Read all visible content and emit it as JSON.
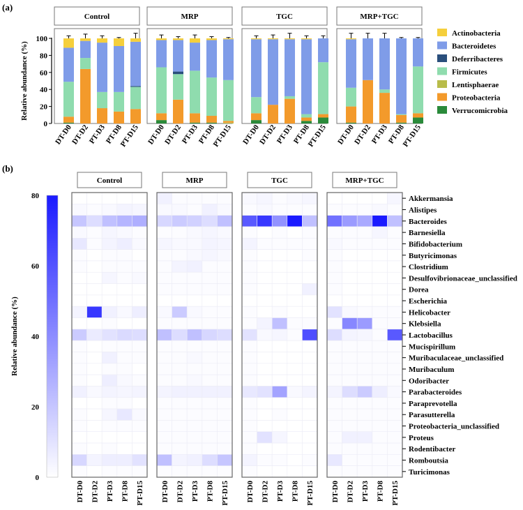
{
  "chart_data": [
    {
      "type": "bar",
      "stacked": true,
      "panel_label": "(a)",
      "ylabel": "Relative abundance (%)",
      "ylim": [
        0,
        100
      ],
      "yticks": [
        "0",
        "20",
        "40",
        "60",
        "80",
        "100"
      ],
      "categories": [
        "DT-D0",
        "DT-D2",
        "PT-D3",
        "PT-D8",
        "PT-D15"
      ],
      "facets": [
        "Control",
        "MRP",
        "TGC",
        "MRP+TGC"
      ],
      "legend": [
        {
          "name": "Actinobacteria",
          "color": "#f5cf3c"
        },
        {
          "name": "Bacteroidetes",
          "color": "#7f9ce8"
        },
        {
          "name": "Deferribacteres",
          "color": "#2a4f7c"
        },
        {
          "name": "Firmicutes",
          "color": "#8fdcae"
        },
        {
          "name": "Lentisphaerae",
          "color": "#b8bc4a"
        },
        {
          "name": "Proteobacteria",
          "color": "#f39a2b"
        },
        {
          "name": "Verrucomicrobia",
          "color": "#2a8a3a"
        }
      ],
      "stack_order": [
        "Verrucomicrobia",
        "Lentisphaerae",
        "Proteobacteria",
        "Firmicutes",
        "Deferribacteres",
        "Bacteroidetes",
        "Actinobacteria"
      ],
      "series_values": {
        "Control": [
          [
            1,
            0,
            7,
            41,
            0,
            40,
            11
          ],
          [
            0,
            0,
            64,
            13,
            0,
            20,
            3
          ],
          [
            0,
            0,
            18,
            19,
            0,
            58,
            5
          ],
          [
            0,
            0,
            14,
            23,
            0,
            54,
            9
          ],
          [
            0,
            0,
            17,
            26,
            1,
            52,
            4
          ]
        ],
        "MRP": [
          [
            4,
            0,
            8,
            54,
            0,
            32,
            2
          ],
          [
            0,
            0,
            28,
            30,
            3,
            37,
            2
          ],
          [
            1,
            0,
            11,
            50,
            0,
            33,
            5
          ],
          [
            1,
            0,
            8,
            45,
            0,
            44,
            2
          ],
          [
            0,
            1,
            2,
            48,
            0,
            48,
            1
          ]
        ],
        "TGC": [
          [
            4,
            0,
            8,
            19,
            0,
            68,
            1
          ],
          [
            0,
            0,
            22,
            0,
            0,
            77,
            1
          ],
          [
            0,
            0,
            29,
            3,
            0,
            67,
            1
          ],
          [
            3,
            0,
            4,
            4,
            0,
            88,
            1
          ],
          [
            7,
            0,
            4,
            61,
            0,
            28,
            0
          ]
        ],
        "MRP+TGC": [
          [
            1,
            0,
            19,
            22,
            0,
            57,
            1
          ],
          [
            0,
            0,
            51,
            0,
            0,
            49,
            0
          ],
          [
            0,
            0,
            36,
            4,
            0,
            60,
            0
          ],
          [
            1,
            0,
            9,
            1,
            0,
            89,
            0
          ],
          [
            7,
            0,
            5,
            55,
            0,
            33,
            0
          ]
        ]
      },
      "error_bars": {
        "Control": [
          3,
          5,
          3,
          1,
          6
        ],
        "MRP": [
          4,
          2,
          4,
          2,
          1
        ],
        "TGC": [
          3,
          4,
          6,
          3,
          3
        ],
        "MRP+TGC": [
          6,
          6,
          6,
          1,
          1
        ]
      }
    },
    {
      "type": "heatmap",
      "panel_label": "(b)",
      "colorbar_label": "Relative abundance (%)",
      "colorbar_range": [
        0,
        80
      ],
      "colorbar_ticks": [
        "0",
        "20",
        "40",
        "60",
        "80"
      ],
      "low_color": "#ffffff",
      "high_color": "#1a1aff",
      "facets": [
        "Control",
        "MRP",
        "TGC",
        "MRP+TGC"
      ],
      "columns": [
        "DT-D0",
        "DT-D2",
        "PT-D3",
        "PT-D8",
        "PT-D15"
      ],
      "rows": [
        "Akkermansia",
        "Alistipes",
        "Bacteroides",
        "Barnesiella",
        "Bifidobacterium",
        "Butyricimonas",
        "Clostridium",
        "Desulfovibrionaceae_unclassified",
        "Dorea",
        "Escherichia",
        "Helicobacter",
        "Klebsiella",
        "Lactobacillus",
        "Mucispirillum",
        "Muribaculaceae_unclassified",
        "Muribaculum",
        "Odoribacter",
        "Parabacteroides",
        "Paraprevotella",
        "Parasutterella",
        "Proteobacteria_unclassified",
        "Proteus",
        "Rodentibacter",
        "Romboutsia",
        "Turicimonas"
      ],
      "values": {
        "Control": [
          [
            0,
            0,
            0,
            0,
            0
          ],
          [
            2,
            1,
            2,
            4,
            3
          ],
          [
            20,
            12,
            22,
            26,
            28
          ],
          [
            2,
            1,
            3,
            2,
            1
          ],
          [
            8,
            1,
            4,
            6,
            2
          ],
          [
            1,
            0,
            1,
            1,
            0
          ],
          [
            1,
            0,
            1,
            1,
            1
          ],
          [
            0,
            0,
            3,
            1,
            2
          ],
          [
            0,
            0,
            0,
            0,
            0
          ],
          [
            0,
            0,
            0,
            0,
            0
          ],
          [
            4,
            70,
            5,
            2,
            6
          ],
          [
            0,
            0,
            1,
            0,
            0
          ],
          [
            18,
            7,
            10,
            13,
            12
          ],
          [
            1,
            0,
            1,
            1,
            1
          ],
          [
            1,
            0,
            5,
            1,
            1
          ],
          [
            1,
            0,
            1,
            1,
            0
          ],
          [
            1,
            0,
            6,
            2,
            1
          ],
          [
            5,
            2,
            4,
            3,
            4
          ],
          [
            0,
            0,
            1,
            1,
            0
          ],
          [
            1,
            0,
            3,
            8,
            2
          ],
          [
            1,
            0,
            1,
            1,
            1
          ],
          [
            0,
            0,
            0,
            0,
            0
          ],
          [
            1,
            0,
            1,
            0,
            0
          ],
          [
            14,
            4,
            6,
            6,
            10
          ],
          [
            1,
            0,
            1,
            1,
            1
          ]
        ],
        "MRP": [
          [
            5,
            1,
            1,
            1,
            1
          ],
          [
            2,
            2,
            1,
            5,
            2
          ],
          [
            14,
            18,
            16,
            12,
            22
          ],
          [
            1,
            1,
            2,
            3,
            2
          ],
          [
            3,
            2,
            2,
            4,
            3
          ],
          [
            1,
            1,
            2,
            3,
            2
          ],
          [
            1,
            4,
            5,
            1,
            1
          ],
          [
            1,
            1,
            1,
            1,
            1
          ],
          [
            1,
            1,
            1,
            1,
            1
          ],
          [
            0,
            0,
            0,
            0,
            0
          ],
          [
            2,
            18,
            2,
            1,
            1
          ],
          [
            1,
            1,
            1,
            1,
            1
          ],
          [
            22,
            12,
            22,
            14,
            12
          ],
          [
            1,
            1,
            1,
            1,
            1
          ],
          [
            1,
            1,
            2,
            1,
            1
          ],
          [
            1,
            1,
            1,
            1,
            1
          ],
          [
            1,
            1,
            2,
            1,
            1
          ],
          [
            4,
            5,
            5,
            5,
            5
          ],
          [
            1,
            1,
            1,
            1,
            1
          ],
          [
            1,
            1,
            1,
            1,
            1
          ],
          [
            1,
            1,
            1,
            1,
            1
          ],
          [
            1,
            1,
            1,
            1,
            1
          ],
          [
            1,
            1,
            1,
            1,
            1
          ],
          [
            22,
            4,
            5,
            12,
            20
          ],
          [
            1,
            1,
            1,
            1,
            1
          ]
        ],
        "TGC": [
          [
            2,
            3,
            1,
            2,
            3
          ],
          [
            1,
            2,
            1,
            1,
            1
          ],
          [
            58,
            70,
            38,
            80,
            22
          ],
          [
            1,
            0,
            1,
            0,
            1
          ],
          [
            4,
            1,
            1,
            1,
            1
          ],
          [
            1,
            0,
            0,
            0,
            1
          ],
          [
            1,
            0,
            0,
            0,
            0
          ],
          [
            1,
            0,
            0,
            0,
            0
          ],
          [
            1,
            0,
            0,
            0,
            5
          ],
          [
            0,
            0,
            0,
            0,
            0
          ],
          [
            1,
            0,
            1,
            0,
            0
          ],
          [
            1,
            4,
            22,
            1,
            1
          ],
          [
            10,
            2,
            3,
            1,
            62
          ],
          [
            1,
            0,
            0,
            0,
            0
          ],
          [
            1,
            0,
            0,
            0,
            0
          ],
          [
            1,
            0,
            0,
            0,
            0
          ],
          [
            1,
            0,
            0,
            0,
            0
          ],
          [
            8,
            10,
            32,
            2,
            4
          ],
          [
            1,
            0,
            0,
            0,
            0
          ],
          [
            1,
            0,
            1,
            0,
            0
          ],
          [
            1,
            0,
            0,
            0,
            0
          ],
          [
            1,
            10,
            3,
            0,
            0
          ],
          [
            1,
            0,
            0,
            0,
            0
          ],
          [
            4,
            1,
            1,
            0,
            1
          ],
          [
            1,
            0,
            0,
            0,
            0
          ]
        ],
        "MRP+TGC": [
          [
            0,
            0,
            0,
            0,
            3
          ],
          [
            1,
            1,
            1,
            2,
            1
          ],
          [
            50,
            35,
            30,
            80,
            22
          ],
          [
            1,
            1,
            1,
            3,
            1
          ],
          [
            2,
            1,
            1,
            1,
            1
          ],
          [
            1,
            0,
            0,
            0,
            0
          ],
          [
            1,
            0,
            0,
            0,
            0
          ],
          [
            1,
            0,
            0,
            0,
            0
          ],
          [
            1,
            0,
            0,
            0,
            0
          ],
          [
            0,
            0,
            0,
            0,
            0
          ],
          [
            10,
            2,
            1,
            1,
            1
          ],
          [
            1,
            42,
            35,
            1,
            1
          ],
          [
            12,
            4,
            3,
            1,
            58
          ],
          [
            1,
            1,
            1,
            1,
            1
          ],
          [
            1,
            1,
            1,
            1,
            1
          ],
          [
            1,
            1,
            1,
            1,
            1
          ],
          [
            1,
            1,
            1,
            1,
            1
          ],
          [
            4,
            12,
            18,
            6,
            2
          ],
          [
            1,
            1,
            1,
            1,
            1
          ],
          [
            1,
            1,
            1,
            1,
            1
          ],
          [
            1,
            1,
            1,
            1,
            1
          ],
          [
            1,
            5,
            5,
            1,
            1
          ],
          [
            1,
            1,
            1,
            1,
            1
          ],
          [
            8,
            1,
            1,
            1,
            1
          ],
          [
            1,
            1,
            1,
            1,
            1
          ]
        ]
      }
    }
  ]
}
